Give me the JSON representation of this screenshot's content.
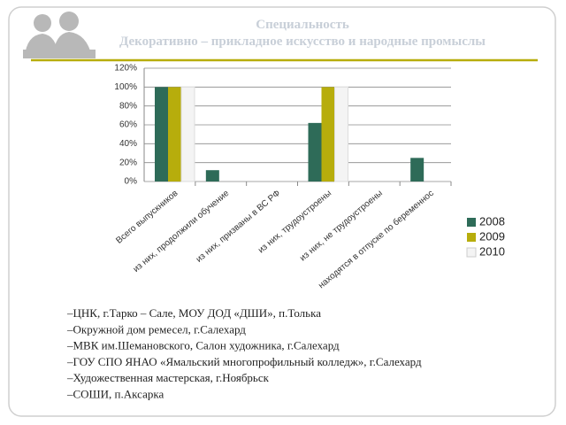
{
  "chart_data": {
    "type": "bar",
    "title": "Специальность",
    "subtitle": "Декоративно – прикладное искусство и народные промыслы",
    "categories": [
      "Всего выпускников",
      "из них, продолжили обучение",
      "из них, призваны в ВС РФ",
      "из них, трудоустроены",
      "из них, не трудоустроены",
      "находятся в отпуске по беременнос"
    ],
    "series": [
      {
        "name": "2008",
        "color": "#2e6b58",
        "values": [
          100,
          12,
          0,
          62,
          0,
          25
        ]
      },
      {
        "name": "2009",
        "color": "#b7ad0c",
        "values": [
          100,
          0,
          0,
          100,
          0,
          0
        ]
      },
      {
        "name": "2010",
        "color": "#f4f4f4",
        "values": [
          100,
          0,
          0,
          100,
          0,
          0
        ]
      }
    ],
    "ylim": [
      0,
      120
    ],
    "yticks": [
      {
        "value": 0,
        "label": "0%"
      },
      {
        "value": 20,
        "label": "20%"
      },
      {
        "value": 40,
        "label": "40%"
      },
      {
        "value": 60,
        "label": "60%"
      },
      {
        "value": 80,
        "label": "80%"
      },
      {
        "value": 100,
        "label": "100%"
      },
      {
        "value": 120,
        "label": "120%"
      }
    ],
    "grid": true,
    "legend": "right"
  },
  "notes": [
    "–ЦНК, г.Тарко – Сале, МОУ ДОД «ДШИ», п.Толька",
    "–Окружной дом ремесел, г.Салехард",
    "–МВК им.Шемановского, Салон художника, г.Салехард",
    "–ГОУ СПО ЯНАО «Ямальский многопрофильный колледж», г.Салехард",
    "–Художественная мастерская, г.Ноябрьск",
    "–СОШИ, п.Аксарка"
  ]
}
